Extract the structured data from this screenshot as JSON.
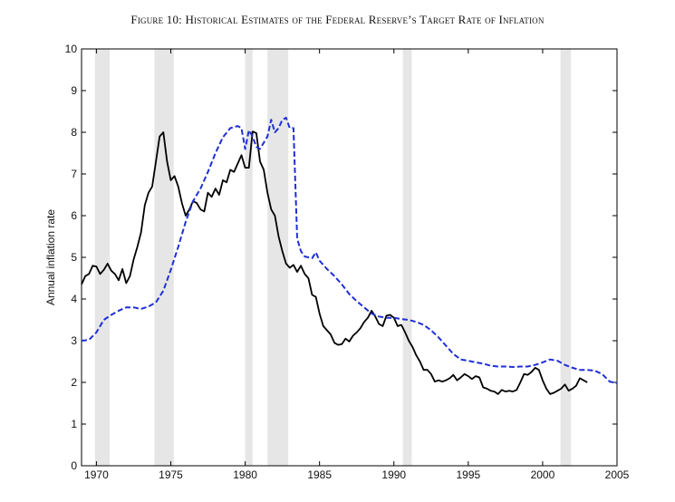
{
  "title": "Figure 10: Historical Estimates of the Federal Reserve’s Target Rate of Inflation",
  "chart_data": {
    "type": "line",
    "title": "Figure 10: Historical Estimates of the Federal Reserve’s Target Rate of Inflation",
    "xlabel": "",
    "ylabel": "Annual inflation rate",
    "xlim": [
      1969,
      2005
    ],
    "ylim": [
      0,
      10
    ],
    "x_ticks": [
      1970,
      1975,
      1980,
      1985,
      1990,
      1995,
      2000,
      2005
    ],
    "y_ticks": [
      0,
      1,
      2,
      3,
      4,
      5,
      6,
      7,
      8,
      9,
      10
    ],
    "grid": false,
    "legend": "none",
    "recession_shading": [
      [
        1969.9,
        1970.9
      ],
      [
        1973.9,
        1975.2
      ],
      [
        1980.0,
        1980.5
      ],
      [
        1981.5,
        1982.9
      ],
      [
        1990.6,
        1991.2
      ],
      [
        2001.2,
        2001.9
      ]
    ],
    "series": [
      {
        "style": "solid",
        "color": "#000000",
        "points": [
          [
            1969.0,
            4.35
          ],
          [
            1969.25,
            4.55
          ],
          [
            1969.5,
            4.6
          ],
          [
            1969.75,
            4.8
          ],
          [
            1970.0,
            4.78
          ],
          [
            1970.25,
            4.6
          ],
          [
            1970.5,
            4.7
          ],
          [
            1970.75,
            4.85
          ],
          [
            1971.0,
            4.68
          ],
          [
            1971.25,
            4.6
          ],
          [
            1971.5,
            4.45
          ],
          [
            1971.75,
            4.72
          ],
          [
            1972.0,
            4.38
          ],
          [
            1972.25,
            4.55
          ],
          [
            1972.5,
            4.95
          ],
          [
            1972.75,
            5.25
          ],
          [
            1973.0,
            5.6
          ],
          [
            1973.25,
            6.25
          ],
          [
            1973.5,
            6.55
          ],
          [
            1973.75,
            6.7
          ],
          [
            1974.0,
            7.3
          ],
          [
            1974.25,
            7.9
          ],
          [
            1974.5,
            8.0
          ],
          [
            1974.75,
            7.3
          ],
          [
            1975.0,
            6.85
          ],
          [
            1975.25,
            6.95
          ],
          [
            1975.5,
            6.7
          ],
          [
            1975.75,
            6.3
          ],
          [
            1976.0,
            6.0
          ],
          [
            1976.25,
            6.15
          ],
          [
            1976.5,
            6.35
          ],
          [
            1976.75,
            6.3
          ],
          [
            1977.0,
            6.15
          ],
          [
            1977.25,
            6.1
          ],
          [
            1977.5,
            6.55
          ],
          [
            1977.75,
            6.45
          ],
          [
            1978.0,
            6.65
          ],
          [
            1978.25,
            6.5
          ],
          [
            1978.5,
            6.85
          ],
          [
            1978.75,
            6.8
          ],
          [
            1979.0,
            7.1
          ],
          [
            1979.25,
            7.05
          ],
          [
            1979.5,
            7.25
          ],
          [
            1979.75,
            7.45
          ],
          [
            1980.0,
            7.15
          ],
          [
            1980.25,
            7.15
          ],
          [
            1980.5,
            8.02
          ],
          [
            1980.75,
            7.98
          ],
          [
            1981.0,
            7.3
          ],
          [
            1981.25,
            7.1
          ],
          [
            1981.5,
            6.55
          ],
          [
            1981.75,
            6.15
          ],
          [
            1982.0,
            6.0
          ],
          [
            1982.25,
            5.5
          ],
          [
            1982.5,
            5.15
          ],
          [
            1982.75,
            4.85
          ],
          [
            1983.0,
            4.75
          ],
          [
            1983.25,
            4.82
          ],
          [
            1983.5,
            4.65
          ],
          [
            1983.75,
            4.8
          ],
          [
            1984.0,
            4.6
          ],
          [
            1984.25,
            4.5
          ],
          [
            1984.5,
            4.1
          ],
          [
            1984.75,
            4.05
          ],
          [
            1985.0,
            3.65
          ],
          [
            1985.25,
            3.35
          ],
          [
            1985.5,
            3.25
          ],
          [
            1985.75,
            3.15
          ],
          [
            1986.0,
            2.95
          ],
          [
            1986.25,
            2.9
          ],
          [
            1986.5,
            2.92
          ],
          [
            1986.75,
            3.05
          ],
          [
            1987.0,
            2.98
          ],
          [
            1987.25,
            3.12
          ],
          [
            1987.5,
            3.2
          ],
          [
            1987.75,
            3.3
          ],
          [
            1988.0,
            3.45
          ],
          [
            1988.25,
            3.55
          ],
          [
            1988.5,
            3.72
          ],
          [
            1988.75,
            3.58
          ],
          [
            1989.0,
            3.4
          ],
          [
            1989.25,
            3.35
          ],
          [
            1989.5,
            3.6
          ],
          [
            1989.75,
            3.62
          ],
          [
            1990.0,
            3.55
          ],
          [
            1990.25,
            3.35
          ],
          [
            1990.5,
            3.38
          ],
          [
            1990.75,
            3.2
          ],
          [
            1991.0,
            3.0
          ],
          [
            1991.25,
            2.85
          ],
          [
            1991.5,
            2.65
          ],
          [
            1991.75,
            2.5
          ],
          [
            1992.0,
            2.3
          ],
          [
            1992.25,
            2.3
          ],
          [
            1992.5,
            2.2
          ],
          [
            1992.75,
            2.02
          ],
          [
            1993.0,
            2.05
          ],
          [
            1993.25,
            2.02
          ],
          [
            1993.5,
            2.05
          ],
          [
            1993.75,
            2.1
          ],
          [
            1994.0,
            2.18
          ],
          [
            1994.25,
            2.05
          ],
          [
            1994.5,
            2.12
          ],
          [
            1994.75,
            2.2
          ],
          [
            1995.0,
            2.15
          ],
          [
            1995.25,
            2.08
          ],
          [
            1995.5,
            2.15
          ],
          [
            1995.75,
            2.12
          ],
          [
            1996.0,
            1.88
          ],
          [
            1996.25,
            1.85
          ],
          [
            1996.5,
            1.8
          ],
          [
            1996.75,
            1.78
          ],
          [
            1997.0,
            1.72
          ],
          [
            1997.25,
            1.82
          ],
          [
            1997.5,
            1.78
          ],
          [
            1997.75,
            1.8
          ],
          [
            1998.0,
            1.78
          ],
          [
            1998.25,
            1.82
          ],
          [
            1998.5,
            2.0
          ],
          [
            1998.75,
            2.2
          ],
          [
            1999.0,
            2.18
          ],
          [
            1999.25,
            2.25
          ],
          [
            1999.5,
            2.35
          ],
          [
            1999.75,
            2.3
          ],
          [
            2000.0,
            2.05
          ],
          [
            2000.25,
            1.85
          ],
          [
            2000.5,
            1.72
          ],
          [
            2000.75,
            1.75
          ],
          [
            2001.0,
            1.8
          ],
          [
            2001.25,
            1.85
          ],
          [
            2001.5,
            1.95
          ],
          [
            2001.75,
            1.8
          ],
          [
            2002.0,
            1.85
          ],
          [
            2002.25,
            1.92
          ],
          [
            2002.5,
            2.1
          ],
          [
            2002.75,
            2.05
          ],
          [
            2003.0,
            2.0
          ]
        ]
      },
      {
        "style": "dashed",
        "color": "#1f2fd6",
        "points": [
          [
            1969.0,
            3.0
          ],
          [
            1969.5,
            3.02
          ],
          [
            1970.0,
            3.2
          ],
          [
            1970.5,
            3.5
          ],
          [
            1971.0,
            3.62
          ],
          [
            1971.5,
            3.72
          ],
          [
            1972.0,
            3.8
          ],
          [
            1972.5,
            3.8
          ],
          [
            1973.0,
            3.76
          ],
          [
            1973.5,
            3.82
          ],
          [
            1974.0,
            3.92
          ],
          [
            1974.5,
            4.2
          ],
          [
            1975.0,
            4.7
          ],
          [
            1975.5,
            5.25
          ],
          [
            1976.0,
            5.85
          ],
          [
            1976.5,
            6.35
          ],
          [
            1977.0,
            6.65
          ],
          [
            1977.5,
            7.05
          ],
          [
            1978.0,
            7.5
          ],
          [
            1978.5,
            7.88
          ],
          [
            1979.0,
            8.1
          ],
          [
            1979.5,
            8.15
          ],
          [
            1979.75,
            8.1
          ],
          [
            1980.0,
            7.6
          ],
          [
            1980.25,
            8.05
          ],
          [
            1980.5,
            7.9
          ],
          [
            1980.75,
            7.65
          ],
          [
            1981.0,
            7.6
          ],
          [
            1981.25,
            7.75
          ],
          [
            1981.5,
            7.9
          ],
          [
            1981.75,
            8.3
          ],
          [
            1982.0,
            8.0
          ],
          [
            1982.25,
            8.1
          ],
          [
            1982.5,
            8.3
          ],
          [
            1982.75,
            8.35
          ],
          [
            1983.0,
            8.1
          ],
          [
            1983.25,
            8.1
          ],
          [
            1983.5,
            5.45
          ],
          [
            1983.75,
            5.15
          ],
          [
            1984.0,
            5.02
          ],
          [
            1984.5,
            4.98
          ],
          [
            1984.75,
            5.12
          ],
          [
            1985.0,
            4.92
          ],
          [
            1985.5,
            4.72
          ],
          [
            1986.0,
            4.55
          ],
          [
            1986.5,
            4.35
          ],
          [
            1987.0,
            4.12
          ],
          [
            1987.5,
            3.95
          ],
          [
            1988.0,
            3.8
          ],
          [
            1988.5,
            3.65
          ],
          [
            1989.0,
            3.58
          ],
          [
            1989.5,
            3.55
          ],
          [
            1990.0,
            3.55
          ],
          [
            1990.5,
            3.52
          ],
          [
            1991.0,
            3.5
          ],
          [
            1991.5,
            3.45
          ],
          [
            1992.0,
            3.38
          ],
          [
            1992.5,
            3.25
          ],
          [
            1993.0,
            3.08
          ],
          [
            1993.5,
            2.88
          ],
          [
            1994.0,
            2.68
          ],
          [
            1994.5,
            2.55
          ],
          [
            1995.0,
            2.52
          ],
          [
            1995.5,
            2.48
          ],
          [
            1996.0,
            2.45
          ],
          [
            1996.5,
            2.4
          ],
          [
            1997.0,
            2.38
          ],
          [
            1997.5,
            2.38
          ],
          [
            1998.0,
            2.37
          ],
          [
            1998.5,
            2.38
          ],
          [
            1999.0,
            2.38
          ],
          [
            1999.5,
            2.42
          ],
          [
            2000.0,
            2.48
          ],
          [
            2000.5,
            2.55
          ],
          [
            2001.0,
            2.52
          ],
          [
            2001.5,
            2.42
          ],
          [
            2002.0,
            2.35
          ],
          [
            2002.5,
            2.3
          ],
          [
            2003.0,
            2.3
          ],
          [
            2003.5,
            2.28
          ],
          [
            2004.0,
            2.2
          ],
          [
            2004.5,
            2.02
          ],
          [
            2005.0,
            1.98
          ]
        ]
      }
    ]
  }
}
